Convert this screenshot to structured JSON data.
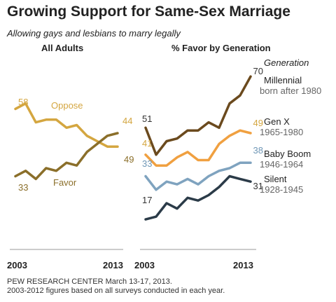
{
  "title": "Growing Support for Same-Sex Marriage",
  "subtitle": "Allowing gays and lesbians to marry legally",
  "source": {
    "line1": "PEW RESEARCH CENTER March 13-17, 2013.",
    "line2": "2003-2012 figures based on all surveys conducted in each year."
  },
  "chart_data": [
    {
      "type": "line",
      "title": "All Adults",
      "x": [
        2003,
        2004,
        2005,
        2006,
        2007,
        2008,
        2009,
        2010,
        2011,
        2012,
        2013
      ],
      "x_tick_labels": [
        "2003",
        "2013"
      ],
      "ylim": [
        10,
        75
      ],
      "grid": false,
      "series": [
        {
          "name": "Oppose",
          "color": "#d4a640",
          "values": [
            58,
            60,
            53,
            54,
            54,
            51,
            52,
            48,
            46,
            44,
            44
          ],
          "start_label": "58",
          "end_label": "44"
        },
        {
          "name": "Favor",
          "color": "#8b6f2a",
          "values": [
            33,
            35,
            32,
            36,
            35,
            38,
            37,
            42,
            45,
            48,
            49
          ],
          "start_label": "33",
          "end_label": "49"
        }
      ]
    },
    {
      "type": "line",
      "title": "% Favor by Generation",
      "x": [
        2003,
        2004,
        2005,
        2006,
        2007,
        2008,
        2009,
        2010,
        2011,
        2012,
        2013
      ],
      "x_tick_labels": [
        "2003",
        "2013"
      ],
      "ylim": [
        10,
        75
      ],
      "grid": false,
      "legend_title": "Generation",
      "series": [
        {
          "name": "Millennial",
          "sub": "born after 1980",
          "color": "#6b4a1e",
          "values": [
            51,
            41,
            46,
            47,
            50,
            50,
            53,
            51,
            60,
            63,
            70
          ],
          "start_label": "51",
          "end_label": "70"
        },
        {
          "name": "Gen X",
          "sub": "1965-1980",
          "color": "#f0a040",
          "values": [
            41,
            37,
            37,
            40,
            42,
            39,
            39,
            45,
            48,
            50,
            49
          ],
          "start_label": "41",
          "end_label": "49"
        },
        {
          "name": "Baby Boom",
          "sub": "1946-1964",
          "color": "#7fa3bf",
          "values": [
            33,
            28,
            31,
            30,
            32,
            30,
            33,
            35,
            36,
            38,
            38
          ],
          "start_label": "33",
          "end_label": "38"
        },
        {
          "name": "Silent",
          "sub": "1928-1945",
          "color": "#2b3b48",
          "values": [
            17,
            18,
            23,
            21,
            25,
            24,
            26,
            29,
            33,
            32,
            31
          ],
          "start_label": "17",
          "end_label": "31"
        }
      ]
    }
  ]
}
